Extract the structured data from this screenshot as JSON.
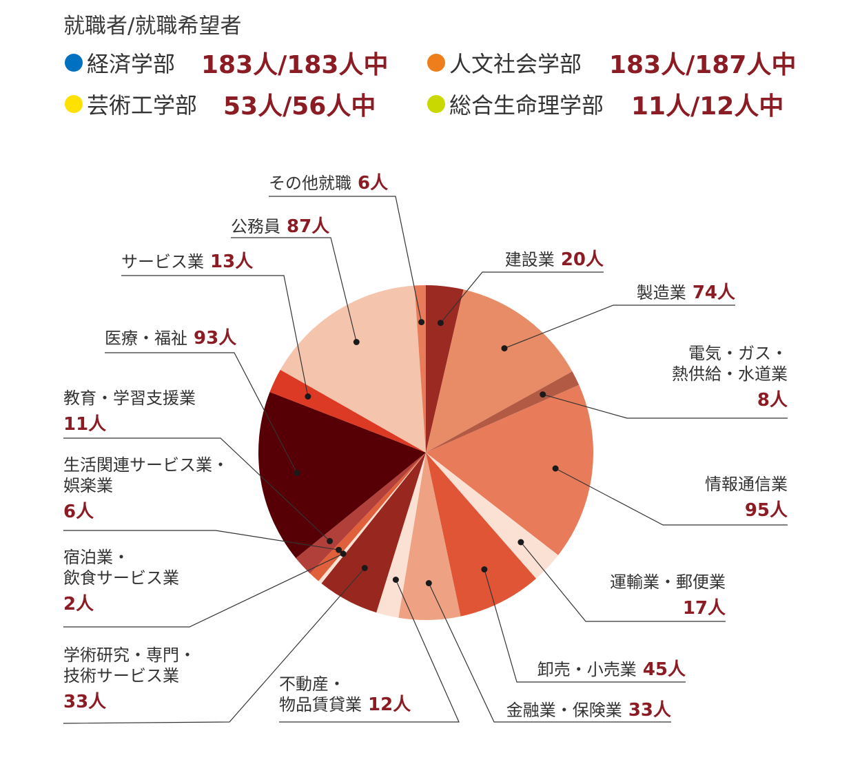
{
  "header": {
    "title": "就職者/就職希望者",
    "legend": [
      {
        "name": "経済学部",
        "count": "183人/183人中",
        "color": "#0070c0"
      },
      {
        "name": "人文社会学部",
        "count": "183人/187人中",
        "color": "#ee7d1b"
      },
      {
        "name": "芸術工学部",
        "count": "53人/56人中",
        "color": "#ffe100"
      },
      {
        "name": "総合生命理学部",
        "count": "11人/12人中",
        "color": "#c9d900"
      }
    ]
  },
  "chart_data": {
    "type": "pie",
    "unit": "人",
    "slices": [
      {
        "name": "建設業",
        "value": 20,
        "color": "#9a2a22",
        "lines": [
          "建設業"
        ],
        "count": "20人"
      },
      {
        "name": "製造業",
        "value": 74,
        "color": "#e88c68",
        "lines": [
          "製造業"
        ],
        "count": "74人"
      },
      {
        "name": "電気・ガス・熱供給・水道業",
        "value": 8,
        "color": "#b35a45",
        "lines": [
          "電気・ガス・",
          "熱供給・水道業"
        ],
        "count": "8人"
      },
      {
        "name": "情報通信業",
        "value": 95,
        "color": "#e87b5a",
        "lines": [
          "情報通信業"
        ],
        "count": "95人"
      },
      {
        "name": "運輸業・郵便業",
        "value": 17,
        "color": "#fbe0d4",
        "lines": [
          "運輸業・郵便業"
        ],
        "count": "17人"
      },
      {
        "name": "卸売・小売業",
        "value": 45,
        "color": "#e05535",
        "lines": [
          "卸売・小売業"
        ],
        "count": "45人"
      },
      {
        "name": "金融業・保険業",
        "value": 33,
        "color": "#efa283",
        "lines": [
          "金融業・保険業"
        ],
        "count": "33人"
      },
      {
        "name": "不動産・物品賃貸業",
        "value": 12,
        "color": "#fbe0d4",
        "lines": [
          "不動産・",
          "物品賃貸業"
        ],
        "count": "12人"
      },
      {
        "name": "学術研究・専門・技術サービス業",
        "value": 33,
        "color": "#98281f",
        "lines": [
          "学術研究・専門・",
          "技術サービス業"
        ],
        "count": "33人"
      },
      {
        "name": "宿泊業・飲食サービス業",
        "value": 2,
        "color": "#fbe0d4",
        "lines": [
          "宿泊業・",
          "飲食サービス業"
        ],
        "count": "2人"
      },
      {
        "name": "生活関連サービス業・娯楽業",
        "value": 6,
        "color": "#e0603c",
        "lines": [
          "生活関連サービス業・",
          "娯楽業"
        ],
        "count": "6人"
      },
      {
        "name": "教育・学習支援業",
        "value": 11,
        "color": "#b2403a",
        "lines": [
          "教育・学習支援業"
        ],
        "count": "11人"
      },
      {
        "name": "医療・福祉",
        "value": 93,
        "color": "#560005",
        "lines": [
          "医療・福祉"
        ],
        "count": "93人"
      },
      {
        "name": "サービス業",
        "value": 13,
        "color": "#dd3a26",
        "lines": [
          "サービス業"
        ],
        "count": "13人"
      },
      {
        "name": "公務員",
        "value": 87,
        "color": "#f5c4ad",
        "lines": [
          "公務員"
        ],
        "count": "87人"
      },
      {
        "name": "その他就職",
        "value": 6,
        "color": "#e87b5a",
        "lines": [
          "その他就職"
        ],
        "count": "6人"
      }
    ]
  }
}
